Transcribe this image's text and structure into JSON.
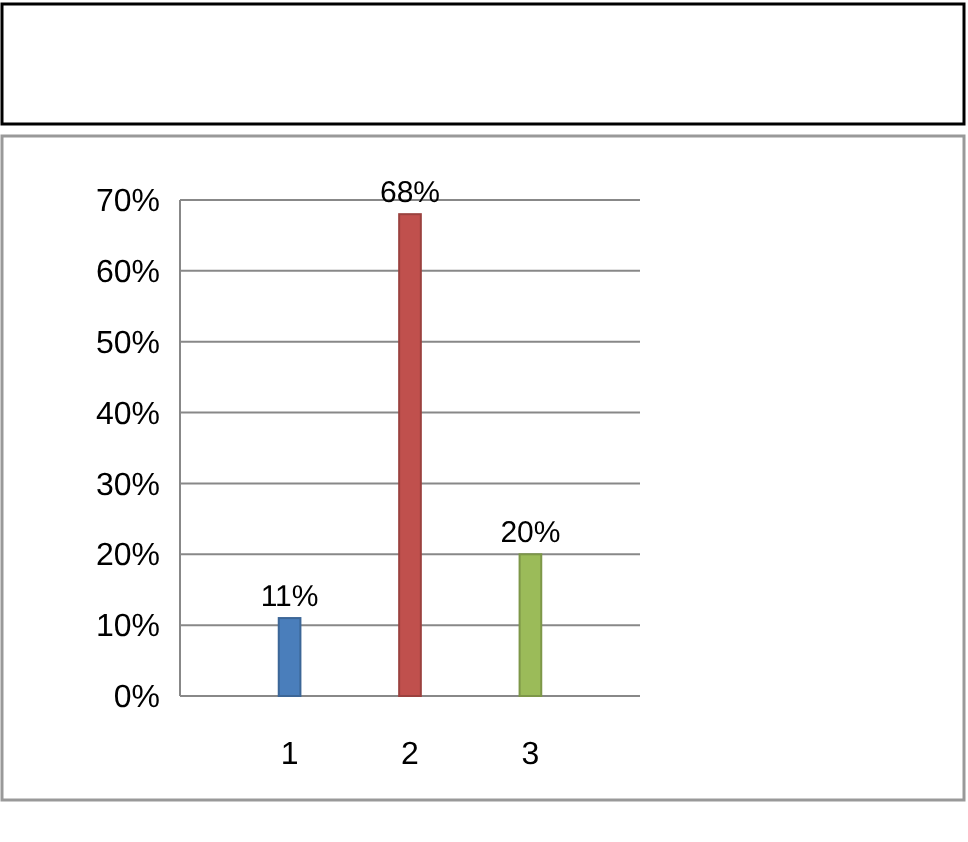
{
  "chart_data": {
    "type": "bar",
    "categories": [
      "1",
      "2",
      "3"
    ],
    "values": [
      11,
      68,
      20
    ],
    "colors": [
      "#4a7ebb",
      "#c0504d",
      "#9bbb59"
    ],
    "value_labels": [
      "11%",
      "68%",
      "20%"
    ],
    "ylim": [
      0,
      70
    ],
    "yticks": [
      {
        "value": 0,
        "label": "0%"
      },
      {
        "value": 10,
        "label": "10%"
      },
      {
        "value": 20,
        "label": "20%"
      },
      {
        "value": 30,
        "label": "30%"
      },
      {
        "value": 40,
        "label": "40%"
      },
      {
        "value": 50,
        "label": "50%"
      },
      {
        "value": 60,
        "label": "60%"
      },
      {
        "value": 70,
        "label": "70%"
      }
    ],
    "grid": true
  }
}
